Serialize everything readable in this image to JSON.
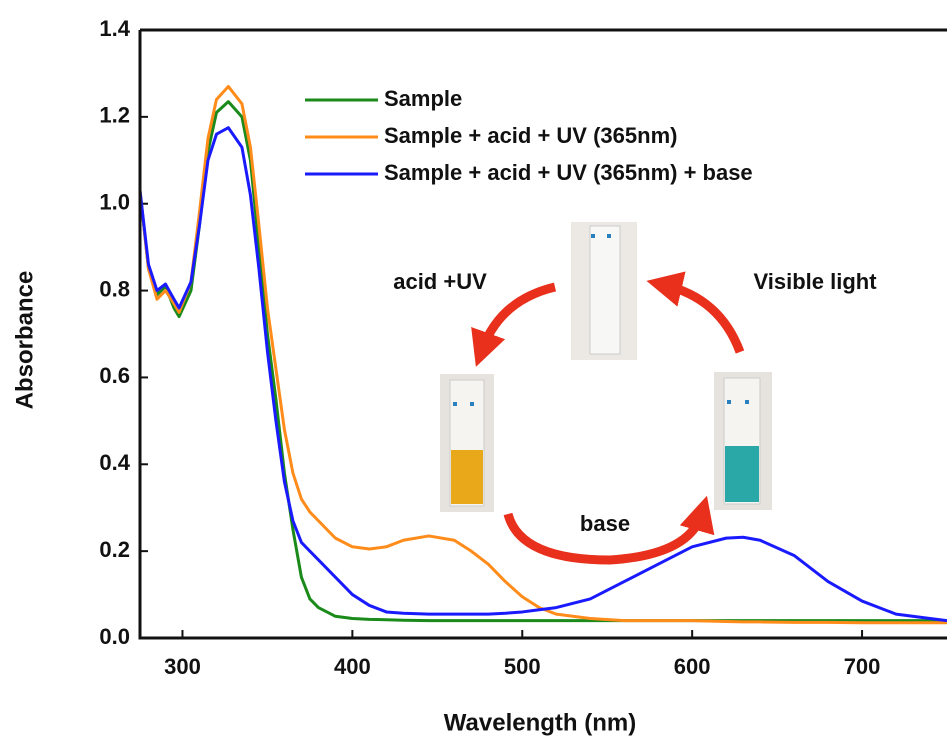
{
  "chart_data": {
    "type": "line",
    "x_label": "Wavelength (nm)",
    "y_label": "Absorbance",
    "xlim": [
      275,
      750
    ],
    "ylim": [
      0,
      1.4
    ],
    "xticks": [
      300,
      400,
      500,
      600,
      700
    ],
    "yticks": [
      {
        "value": 0,
        "label": "0.0"
      },
      {
        "value": 0.2,
        "label": "0.2"
      },
      {
        "value": 0.4,
        "label": "0.4"
      },
      {
        "value": 0.6,
        "label": "0.6"
      },
      {
        "value": 0.8,
        "label": "0.8"
      },
      {
        "value": 1,
        "label": "1.0"
      },
      {
        "value": 1.2,
        "label": "1.2"
      },
      {
        "value": 1.4,
        "label": "1.4"
      }
    ],
    "x": [
      275,
      280,
      285,
      290,
      295,
      298,
      305,
      310,
      315,
      320,
      327,
      335,
      340,
      345,
      350,
      355,
      360,
      365,
      370,
      375,
      380,
      390,
      400,
      410,
      420,
      430,
      445,
      460,
      470,
      480,
      490,
      500,
      510,
      520,
      540,
      560,
      580,
      600,
      620,
      630,
      640,
      660,
      680,
      700,
      720,
      740,
      750
    ],
    "series": [
      {
        "name": "Sample",
        "color": "#1a8a1a",
        "values": [
          1.03,
          0.85,
          0.79,
          0.81,
          0.76,
          0.74,
          0.8,
          0.95,
          1.12,
          1.21,
          1.235,
          1.2,
          1.1,
          0.9,
          0.7,
          0.55,
          0.38,
          0.25,
          0.14,
          0.09,
          0.07,
          0.05,
          0.045,
          0.043,
          0.042,
          0.041,
          0.04,
          0.04,
          0.04,
          0.04,
          0.04,
          0.04,
          0.04,
          0.04,
          0.04,
          0.04,
          0.04,
          0.04,
          0.04,
          0.04,
          0.04,
          0.04,
          0.04,
          0.04,
          0.04,
          0.04,
          0.04
        ]
      },
      {
        "name": "Sample + acid + UV (365nm)",
        "color": "#ff8c1a",
        "values": [
          1.03,
          0.85,
          0.78,
          0.8,
          0.77,
          0.75,
          0.82,
          0.98,
          1.15,
          1.24,
          1.27,
          1.23,
          1.13,
          0.95,
          0.76,
          0.62,
          0.48,
          0.38,
          0.32,
          0.29,
          0.27,
          0.23,
          0.21,
          0.205,
          0.21,
          0.225,
          0.235,
          0.225,
          0.2,
          0.17,
          0.13,
          0.095,
          0.07,
          0.055,
          0.045,
          0.04,
          0.04,
          0.04,
          0.038,
          0.037,
          0.037,
          0.036,
          0.036,
          0.035,
          0.035,
          0.035,
          0.035
        ]
      },
      {
        "name": "Sample + acid + UV (365nm) + base",
        "color": "#1a1aff",
        "values": [
          1.03,
          0.86,
          0.8,
          0.815,
          0.78,
          0.76,
          0.82,
          0.95,
          1.1,
          1.16,
          1.175,
          1.13,
          1.02,
          0.85,
          0.66,
          0.5,
          0.36,
          0.27,
          0.22,
          0.2,
          0.18,
          0.14,
          0.1,
          0.075,
          0.06,
          0.057,
          0.055,
          0.055,
          0.055,
          0.055,
          0.057,
          0.06,
          0.065,
          0.07,
          0.09,
          0.13,
          0.17,
          0.21,
          0.23,
          0.232,
          0.225,
          0.19,
          0.13,
          0.085,
          0.055,
          0.045,
          0.04
        ]
      }
    ],
    "annotations": [
      "acid +UV",
      "Visible light",
      "base"
    ]
  }
}
